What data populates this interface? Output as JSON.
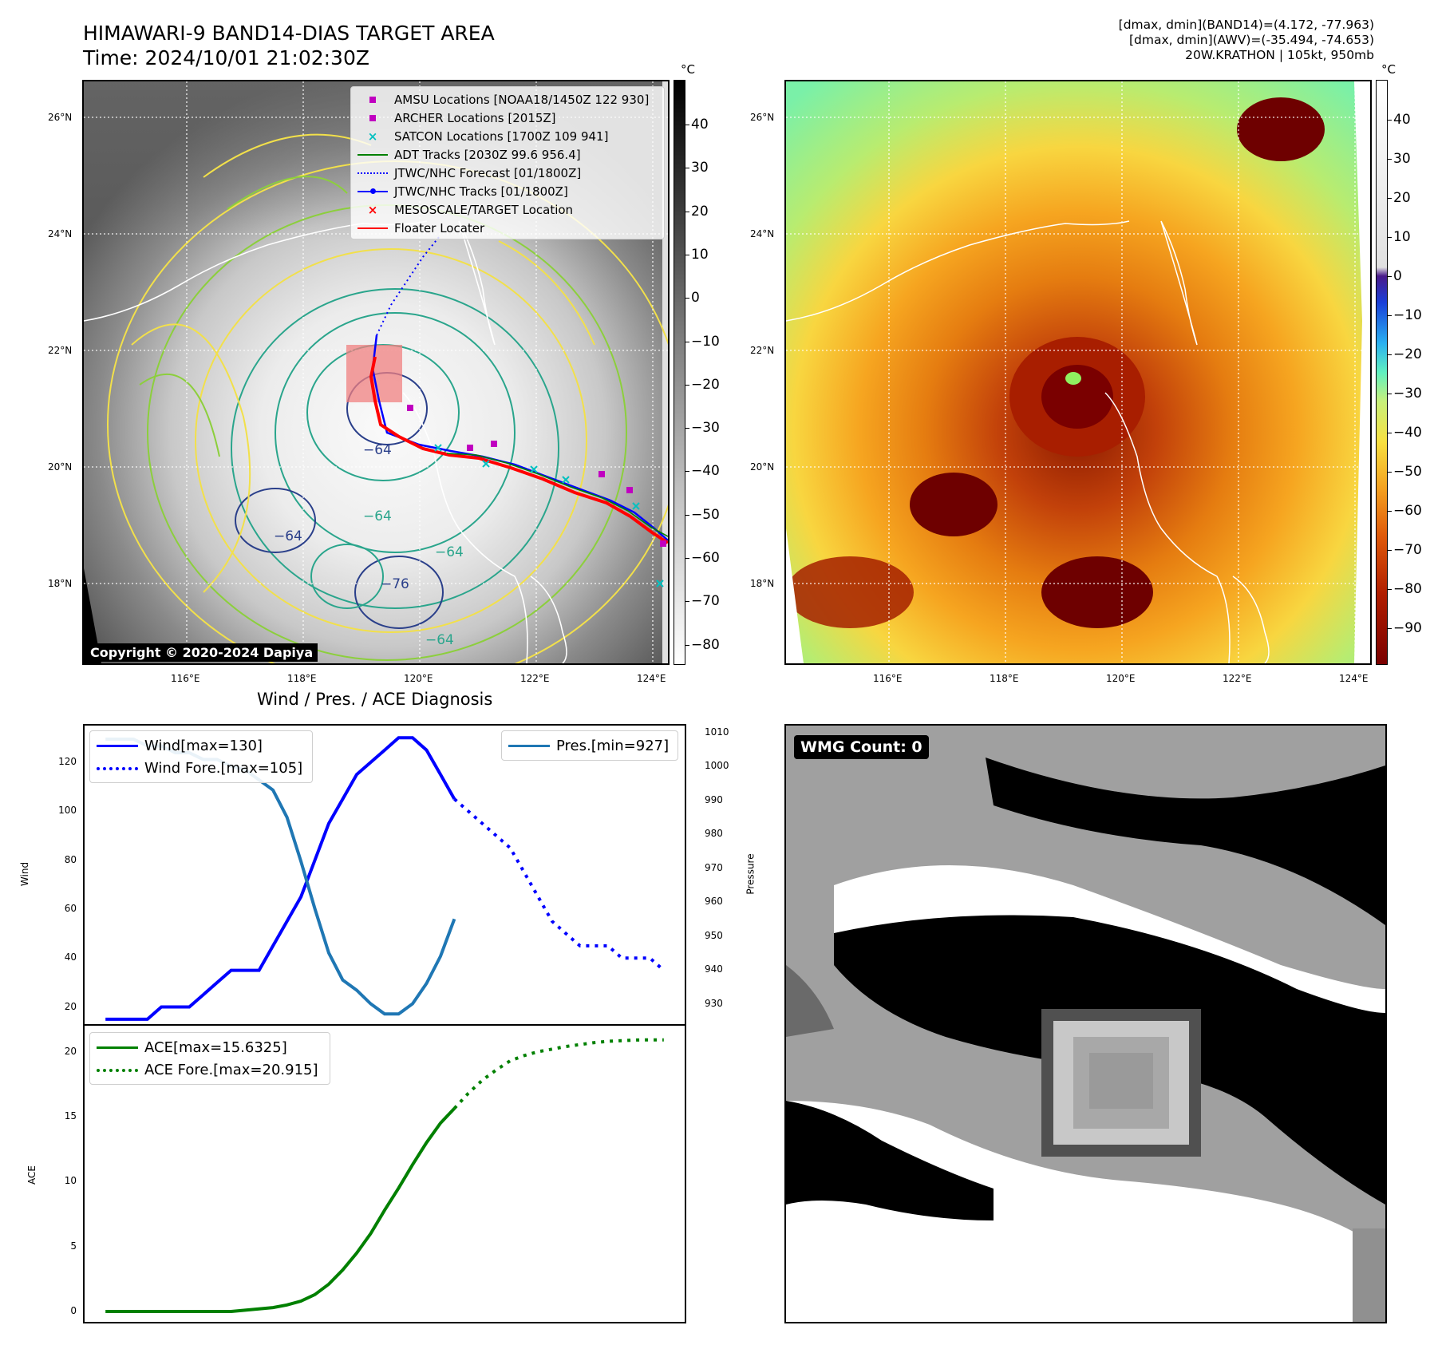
{
  "header": {
    "title_line1": "HIMAWARI-9 BAND14-DIAS TARGET AREA",
    "title_line2": "Time: 2024/10/01 21:02:30Z",
    "info_line1": "[dmax, dmin](BAND14)=(4.172, -77.963)",
    "info_line2": "[dmax, dmin](AWV)=(-35.494, -74.653)",
    "info_line3": "20W.KRATHON | 105kt, 950mb"
  },
  "maps": {
    "lat_labels": [
      "26°N",
      "24°N",
      "22°N",
      "20°N",
      "18°N"
    ],
    "lon_labels": [
      "116°E",
      "118°E",
      "120°E",
      "122°E",
      "124°E"
    ],
    "colorbar_unit": "°C",
    "colorbar1_ticks": [
      "40",
      "30",
      "20",
      "10",
      "0",
      "−10",
      "−20",
      "−30",
      "−40",
      "−50",
      "−60",
      "−70",
      "−80"
    ],
    "colorbar2_ticks": [
      "40",
      "30",
      "20",
      "10",
      "0",
      "−10",
      "−20",
      "−30",
      "−40",
      "−50",
      "−60",
      "−70",
      "−80",
      "−90"
    ],
    "contour_labels": [
      "−64",
      "−64",
      "−64",
      "−76",
      "−64",
      "−64"
    ],
    "copyright": "Copyright © 2020-2024 Dapiya",
    "legend": [
      {
        "label": "AMSU Locations [NOAA18/1450Z 122 930]",
        "symbol": "square",
        "color": "#c000c0"
      },
      {
        "label": "ARCHER Locations [2015Z]",
        "symbol": "square",
        "color": "#c000c0"
      },
      {
        "label": "SATCON Locations [1700Z 109 941]",
        "symbol": "x",
        "color": "#00c0c0"
      },
      {
        "label": "ADT Tracks [2030Z 99.6 956.4]",
        "symbol": "line",
        "color": "#008000"
      },
      {
        "label": "JTWC/NHC Forecast [01/1800Z]",
        "symbol": "dotted",
        "color": "#0000ff"
      },
      {
        "label": "JTWC/NHC Tracks [01/1800Z]",
        "symbol": "line-dot",
        "color": "#0000ff"
      },
      {
        "label": "MESOSCALE/TARGET Location",
        "symbol": "x",
        "color": "#ff0000"
      },
      {
        "label": "Floater Locater",
        "symbol": "line",
        "color": "#ff0000"
      }
    ]
  },
  "wmg": {
    "label": "WMG Count: 0"
  },
  "chart_data": [
    {
      "type": "line",
      "title": "Wind / Pres. / ACE Diagnosis",
      "ylabel": "Wind",
      "y2label": "Pressure",
      "ylim": [
        13,
        135
      ],
      "y2lim": [
        924,
        1012
      ],
      "yticks": [
        20,
        40,
        60,
        80,
        100,
        120
      ],
      "y2ticks": [
        930,
        940,
        950,
        960,
        970,
        980,
        990,
        1000,
        1010
      ],
      "series": [
        {
          "name": "Wind[max=130]",
          "axis": "left",
          "color": "#0000ff",
          "style": "solid",
          "x": [
            0,
            1,
            2,
            3,
            4,
            5,
            6,
            7,
            8,
            9,
            10,
            11,
            12,
            13,
            14,
            15,
            16,
            17,
            18,
            19,
            20,
            21,
            22,
            23,
            24,
            25
          ],
          "values": [
            15,
            15,
            15,
            15,
            20,
            20,
            20,
            25,
            30,
            35,
            35,
            35,
            45,
            55,
            65,
            80,
            95,
            105,
            115,
            120,
            125,
            130,
            130,
            125,
            115,
            105
          ]
        },
        {
          "name": "Wind Fore.[max=105]",
          "axis": "left",
          "color": "#0000ff",
          "style": "dotted",
          "x": [
            25,
            26,
            27,
            28,
            29,
            30,
            31,
            32,
            33,
            34,
            35,
            36,
            37,
            38,
            39,
            40
          ],
          "values": [
            105,
            100,
            95,
            90,
            85,
            75,
            65,
            55,
            50,
            45,
            45,
            45,
            40,
            40,
            40,
            35
          ]
        },
        {
          "name": "Pres.[min=927]",
          "axis": "right",
          "color": "#1f77b4",
          "style": "solid",
          "x": [
            0,
            1,
            2,
            3,
            4,
            5,
            6,
            7,
            8,
            9,
            10,
            11,
            12,
            13,
            14,
            15,
            16,
            17,
            18,
            19,
            20,
            21,
            22,
            23,
            24,
            25
          ],
          "values": [
            1008,
            1008,
            1008,
            1006,
            1006,
            1004,
            1004,
            1002,
            1002,
            1000,
            999,
            996,
            993,
            985,
            972,
            958,
            945,
            937,
            934,
            930,
            927,
            927,
            930,
            936,
            944,
            955
          ]
        }
      ]
    },
    {
      "type": "line",
      "ylabel": "ACE",
      "ylim": [
        -0.8,
        22
      ],
      "yticks": [
        0,
        5,
        10,
        15,
        20
      ],
      "series": [
        {
          "name": "ACE[max=15.6325]",
          "color": "#008000",
          "style": "solid",
          "x": [
            0,
            1,
            2,
            3,
            4,
            5,
            6,
            7,
            8,
            9,
            10,
            11,
            12,
            13,
            14,
            15,
            16,
            17,
            18,
            19,
            20,
            21,
            22,
            23,
            24,
            25
          ],
          "values": [
            0,
            0,
            0,
            0,
            0,
            0,
            0,
            0,
            0,
            0,
            0.1,
            0.2,
            0.3,
            0.5,
            0.8,
            1.3,
            2.1,
            3.2,
            4.5,
            6.0,
            7.8,
            9.5,
            11.3,
            13.0,
            14.5,
            15.6325
          ]
        },
        {
          "name": "ACE Fore.[max=20.915]",
          "color": "#008000",
          "style": "dotted",
          "x": [
            25,
            26,
            27,
            28,
            29,
            30,
            31,
            32,
            33,
            34,
            35,
            36,
            37,
            38,
            39,
            40
          ],
          "values": [
            15.6325,
            16.8,
            17.8,
            18.6,
            19.3,
            19.7,
            20.0,
            20.2,
            20.4,
            20.55,
            20.7,
            20.8,
            20.85,
            20.9,
            20.91,
            20.915
          ]
        }
      ]
    }
  ]
}
